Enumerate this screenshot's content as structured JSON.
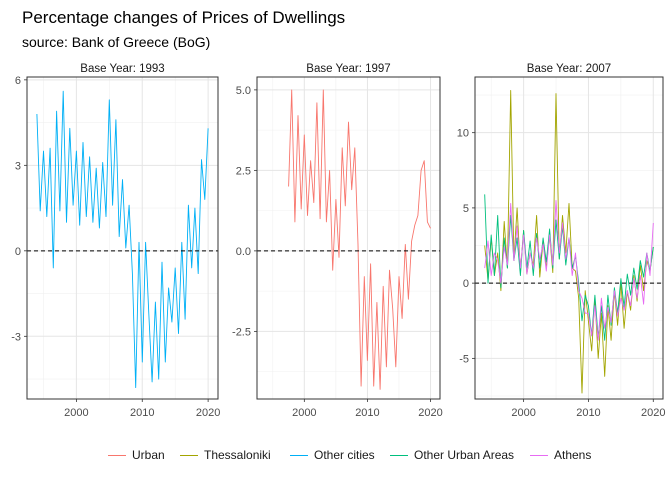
{
  "title": "Percentage changes of Prices of Dwellings",
  "subtitle": "source: Bank of Greece (BoG)",
  "legend": {
    "items": [
      {
        "label": "Urban",
        "color": "#F8766D"
      },
      {
        "label": "Thessaloniki",
        "color": "#A3A500"
      },
      {
        "label": "Other cities",
        "color": "#00B0F6"
      },
      {
        "label": "Other Urban Areas",
        "color": "#00BF7D"
      },
      {
        "label": "Athens",
        "color": "#E76BF3"
      }
    ]
  },
  "chart_data": [
    {
      "type": "line",
      "title": "Base Year: 1993",
      "xlim": [
        1992.5,
        2021.5
      ],
      "ylim": [
        -5.2,
        6.1
      ],
      "xticks": [
        2000,
        2010,
        2020
      ],
      "yticks": [
        -3,
        0,
        3,
        6
      ],
      "ytick_labels": [
        "-3",
        "0",
        "3",
        "6"
      ],
      "reference_line": 0,
      "grid": true,
      "series": [
        {
          "name": "Other cities",
          "color": "#00B0F6",
          "x": [
            1994.0,
            1994.5,
            1995.0,
            1995.5,
            1996.0,
            1996.5,
            1997.0,
            1997.5,
            1998.0,
            1998.5,
            1999.0,
            1999.5,
            2000.0,
            2000.5,
            2001.0,
            2001.5,
            2002.0,
            2002.5,
            2003.0,
            2003.5,
            2004.0,
            2004.5,
            2005.0,
            2005.5,
            2006.0,
            2006.5,
            2007.0,
            2007.5,
            2008.0,
            2008.5,
            2009.0,
            2009.5,
            2010.0,
            2010.5,
            2011.0,
            2011.5,
            2012.0,
            2012.5,
            2013.0,
            2013.5,
            2014.0,
            2014.5,
            2015.0,
            2015.5,
            2016.0,
            2016.5,
            2017.0,
            2017.5,
            2018.0,
            2018.5,
            2019.0,
            2019.5,
            2020.0
          ],
          "y": [
            4.8,
            1.4,
            3.5,
            1.2,
            3.6,
            -0.6,
            4.9,
            1.4,
            5.6,
            1.0,
            4.3,
            1.6,
            3.5,
            0.9,
            3.8,
            1.2,
            3.3,
            1.0,
            2.9,
            0.8,
            3.1,
            1.2,
            5.3,
            1.6,
            4.6,
            0.5,
            2.5,
            0.1,
            1.6,
            -0.8,
            -4.8,
            0.3,
            -3.9,
            0.3,
            -2.2,
            -4.6,
            -1.8,
            -4.5,
            -0.4,
            -3.9,
            -1.3,
            -2.5,
            -0.6,
            -2.9,
            0.3,
            -2.4,
            1.6,
            -0.6,
            1.5,
            -0.8,
            3.2,
            1.8,
            4.3
          ]
        }
      ]
    },
    {
      "type": "line",
      "title": "Base Year: 1997",
      "xlim": [
        1992.5,
        2021.5
      ],
      "ylim": [
        -4.6,
        5.4
      ],
      "xticks": [
        2000,
        2010,
        2020
      ],
      "yticks": [
        -2.5,
        0,
        2.5,
        5
      ],
      "ytick_labels": [
        "-2.5",
        "0.0",
        "2.5",
        "5.0"
      ],
      "reference_line": 0,
      "grid": true,
      "series": [
        {
          "name": "Urban",
          "color": "#F8766D",
          "x": [
            1997.5,
            1998.0,
            1998.5,
            1999.0,
            1999.5,
            2000.0,
            2000.5,
            2001.0,
            2001.5,
            2002.0,
            2002.5,
            2003.0,
            2003.5,
            2004.0,
            2004.5,
            2005.0,
            2005.5,
            2006.0,
            2006.5,
            2007.0,
            2007.5,
            2008.0,
            2008.5,
            2009.0,
            2009.5,
            2010.0,
            2010.5,
            2011.0,
            2011.5,
            2012.0,
            2012.5,
            2013.0,
            2013.5,
            2014.0,
            2014.5,
            2015.0,
            2015.5,
            2016.0,
            2016.5,
            2017.0,
            2017.5,
            2018.0,
            2018.5,
            2019.0,
            2019.5,
            2020.0
          ],
          "y": [
            2.0,
            5.0,
            0.9,
            4.2,
            1.3,
            3.6,
            1.1,
            2.8,
            1.5,
            4.6,
            1.0,
            5.0,
            0.9,
            2.5,
            -0.6,
            1.6,
            -0.2,
            3.2,
            1.4,
            4.0,
            1.9,
            3.2,
            0.2,
            -4.2,
            -0.8,
            -3.4,
            -0.4,
            -4.2,
            -1.6,
            -4.3,
            -1.1,
            -3.6,
            -0.6,
            -1.8,
            -3.6,
            -0.8,
            -2.1,
            0.2,
            -1.5,
            0.3,
            0.8,
            1.1,
            2.5,
            2.8,
            0.9,
            0.7
          ]
        }
      ]
    },
    {
      "type": "line",
      "title": "Base Year: 2007",
      "xlim": [
        1992.5,
        2021.5
      ],
      "ylim": [
        -7.7,
        13.7
      ],
      "xticks": [
        2000,
        2010,
        2020
      ],
      "yticks": [
        -5,
        0,
        5,
        10
      ],
      "ytick_labels": [
        "-5",
        "0",
        "5",
        "10"
      ],
      "reference_line": 0,
      "grid": true,
      "series": [
        {
          "name": "Thessaloniki",
          "color": "#A3A500",
          "x": [
            1994.0,
            1994.5,
            1995.0,
            1995.5,
            1996.0,
            1996.5,
            1997.0,
            1997.5,
            1998.0,
            1998.5,
            1999.0,
            1999.5,
            2000.0,
            2000.5,
            2001.0,
            2001.5,
            2002.0,
            2002.5,
            2003.0,
            2003.5,
            2004.0,
            2004.5,
            2005.0,
            2005.5,
            2006.0,
            2006.5,
            2007.0,
            2007.5,
            2008.0,
            2008.5,
            2009.0,
            2009.5,
            2010.0,
            2010.5,
            2011.0,
            2011.5,
            2012.0,
            2012.5,
            2013.0,
            2013.5,
            2014.0,
            2014.5,
            2015.0,
            2015.5,
            2016.0,
            2016.5,
            2017.0,
            2017.5,
            2018.0,
            2018.5,
            2019.0,
            2019.5,
            2020.0
          ],
          "y": [
            2.5,
            0.2,
            3.0,
            0.5,
            2.0,
            -0.5,
            4.1,
            1.0,
            12.8,
            1.5,
            5.0,
            0.8,
            3.5,
            0.6,
            2.0,
            1.2,
            4.5,
            0.4,
            2.8,
            1.0,
            3.2,
            0.7,
            12.6,
            1.6,
            4.5,
            2.0,
            5.3,
            1.0,
            0.8,
            -1.0,
            -7.3,
            -0.5,
            -2.5,
            -4.5,
            -1.0,
            -5.0,
            -2.0,
            -6.2,
            -1.5,
            -3.8,
            -0.5,
            -2.8,
            0.0,
            -3.0,
            -0.5,
            -1.8,
            0.5,
            -1.2,
            1.2,
            -0.5,
            1.5,
            0.8,
            2.4
          ]
        },
        {
          "name": "Other Urban Areas",
          "color": "#00BF7D",
          "x": [
            1994.0,
            1994.5,
            1995.0,
            1995.5,
            1996.0,
            1996.5,
            1997.0,
            1997.5,
            1998.0,
            1998.5,
            1999.0,
            1999.5,
            2000.0,
            2000.5,
            2001.0,
            2001.5,
            2002.0,
            2002.5,
            2003.0,
            2003.5,
            2004.0,
            2004.5,
            2005.0,
            2005.5,
            2006.0,
            2006.5,
            2007.0,
            2007.5,
            2008.0,
            2008.5,
            2009.0,
            2009.5,
            2010.0,
            2010.5,
            2011.0,
            2011.5,
            2012.0,
            2012.5,
            2013.0,
            2013.5,
            2014.0,
            2014.5,
            2015.0,
            2015.5,
            2016.0,
            2016.5,
            2017.0,
            2017.5,
            2018.0,
            2018.5,
            2019.0,
            2019.5,
            2020.0
          ],
          "y": [
            5.9,
            0.0,
            3.2,
            0.5,
            4.5,
            -0.3,
            3.0,
            1.0,
            4.5,
            1.5,
            3.0,
            0.5,
            3.5,
            1.0,
            2.8,
            0.5,
            3.3,
            1.0,
            3.0,
            1.4,
            3.6,
            1.0,
            4.2,
            1.6,
            3.8,
            1.2,
            3.0,
            1.0,
            1.8,
            0.0,
            -2.5,
            -0.8,
            -1.5,
            -3.5,
            -0.8,
            -3.6,
            -1.5,
            -3.8,
            -0.8,
            -2.8,
            -0.3,
            -2.0,
            0.3,
            -1.6,
            0.6,
            -0.8,
            1.0,
            -0.4,
            1.5,
            0.4,
            2.0,
            0.8,
            2.4
          ]
        },
        {
          "name": "Athens",
          "color": "#E76BF3",
          "x": [
            1994.0,
            1994.5,
            1995.0,
            1995.5,
            1996.0,
            1996.5,
            1997.0,
            1997.5,
            1998.0,
            1998.5,
            1999.0,
            1999.5,
            2000.0,
            2000.5,
            2001.0,
            2001.5,
            2002.0,
            2002.5,
            2003.0,
            2003.5,
            2004.0,
            2004.5,
            2005.0,
            2005.5,
            2006.0,
            2006.5,
            2007.0,
            2007.5,
            2008.0,
            2008.5,
            2009.0,
            2009.5,
            2010.0,
            2010.5,
            2011.0,
            2011.5,
            2012.0,
            2012.5,
            2013.0,
            2013.5,
            2014.0,
            2014.5,
            2015.0,
            2015.5,
            2016.0,
            2016.5,
            2017.0,
            2017.5,
            2018.0,
            2018.5,
            2019.0,
            2019.5,
            2020.0
          ],
          "y": [
            1.0,
            2.8,
            0.5,
            2.0,
            1.5,
            0.0,
            2.4,
            1.2,
            5.3,
            1.5,
            3.8,
            1.0,
            3.2,
            0.6,
            2.0,
            1.0,
            3.0,
            1.6,
            2.6,
            0.8,
            3.2,
            1.2,
            5.5,
            2.0,
            4.0,
            1.6,
            3.0,
            0.5,
            2.0,
            -0.5,
            -1.0,
            -2.0,
            -2.0,
            -3.5,
            -1.5,
            -3.8,
            -1.0,
            -3.0,
            -1.6,
            -2.6,
            -0.5,
            -2.2,
            -1.0,
            -1.8,
            -0.5,
            -1.5,
            0.3,
            -1.0,
            0.5,
            -1.4,
            2.0,
            0.5,
            4.0
          ]
        }
      ]
    }
  ]
}
